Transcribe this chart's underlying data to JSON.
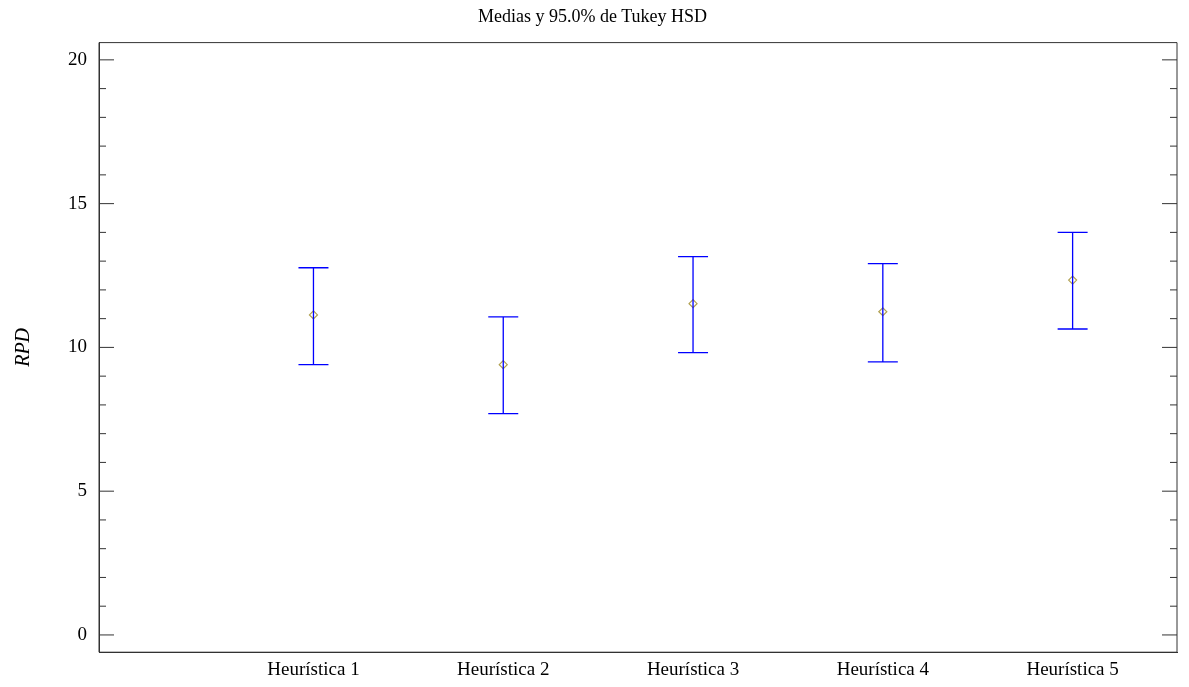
{
  "chart_data": {
    "type": "scatter",
    "title": "Medias y 95.0% de Tukey HSD",
    "ylabel": "RPD",
    "categories": [
      "Heurística 1",
      "Heurística 2",
      "Heurística 3",
      "Heurística 4",
      "Heurística 5"
    ],
    "series": [
      {
        "color": "#b0a050",
        "values": [
          11.13,
          9.4,
          11.52,
          11.24,
          12.34
        ],
        "errors": [
          [
            9.4,
            12.77
          ],
          [
            7.7,
            11.06
          ],
          [
            9.82,
            13.16
          ],
          [
            9.5,
            12.91
          ],
          [
            10.64,
            14.0
          ]
        ]
      }
    ],
    "ylim": [
      -0.6,
      20.6
    ],
    "yticks": [
      0,
      {
        "value": 1,
        "label": null
      },
      {
        "value": 2,
        "label": null
      },
      {
        "value": 3,
        "label": null
      },
      {
        "value": 4,
        "label": null
      },
      5,
      {
        "value": 6,
        "label": null
      },
      {
        "value": 7,
        "label": null
      },
      {
        "value": 8,
        "label": null
      },
      {
        "value": 9,
        "label": null
      },
      10,
      {
        "value": 11,
        "label": null
      },
      {
        "value": 12,
        "label": null
      },
      {
        "value": 13,
        "label": null
      },
      {
        "value": 14,
        "label": null
      },
      15,
      {
        "value": 16,
        "label": null
      },
      {
        "value": 17,
        "label": null
      },
      {
        "value": 18,
        "label": null
      },
      {
        "value": 19,
        "label": null
      },
      20
    ],
    "grid": false,
    "legend": false,
    "marker": "diamond"
  }
}
